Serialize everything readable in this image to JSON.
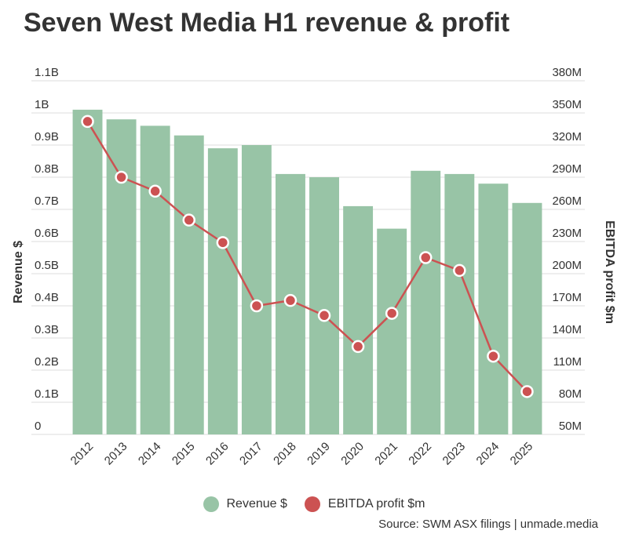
{
  "title": "Seven West Media H1 revenue & profit",
  "source": "Source: SWM ASX filings | unmade.media",
  "colors": {
    "bar": "#98c4a6",
    "line": "#cc5252",
    "grid": "#dddddd",
    "text": "#333333"
  },
  "chart_data": {
    "type": "bar+line",
    "categories": [
      "2012",
      "2013",
      "2014",
      "2015",
      "2016",
      "2017",
      "2018",
      "2019",
      "2020",
      "2021",
      "2022",
      "2023",
      "2024",
      "2025"
    ],
    "series": [
      {
        "name": "Revenue $",
        "axis": "left",
        "kind": "bar",
        "values": [
          1.01,
          0.98,
          0.96,
          0.93,
          0.89,
          0.9,
          0.81,
          0.8,
          0.71,
          0.64,
          0.82,
          0.81,
          0.78,
          0.72
        ]
      },
      {
        "name": "EBITDA profit $m",
        "axis": "right",
        "kind": "line",
        "values": [
          342,
          290,
          277,
          250,
          229,
          170,
          175,
          161,
          132,
          163,
          215,
          203,
          123,
          90
        ]
      }
    ],
    "ylabel": "Revenue $",
    "ylabel_right": "EBITDA profit $m",
    "ylim": [
      0,
      1.1
    ],
    "ylim_right": [
      50,
      380
    ],
    "yticks": [
      "0",
      "0.1B",
      "0.2B",
      "0.3B",
      "0.4B",
      "0.5B",
      "0.6B",
      "0.7B",
      "0.8B",
      "0.9B",
      "1B",
      "1.1B"
    ],
    "yticks_right": [
      "50M",
      "80M",
      "110M",
      "140M",
      "170M",
      "200M",
      "230M",
      "260M",
      "290M",
      "320M",
      "350M",
      "380M"
    ],
    "grid": true,
    "legend": "bottom-center"
  }
}
